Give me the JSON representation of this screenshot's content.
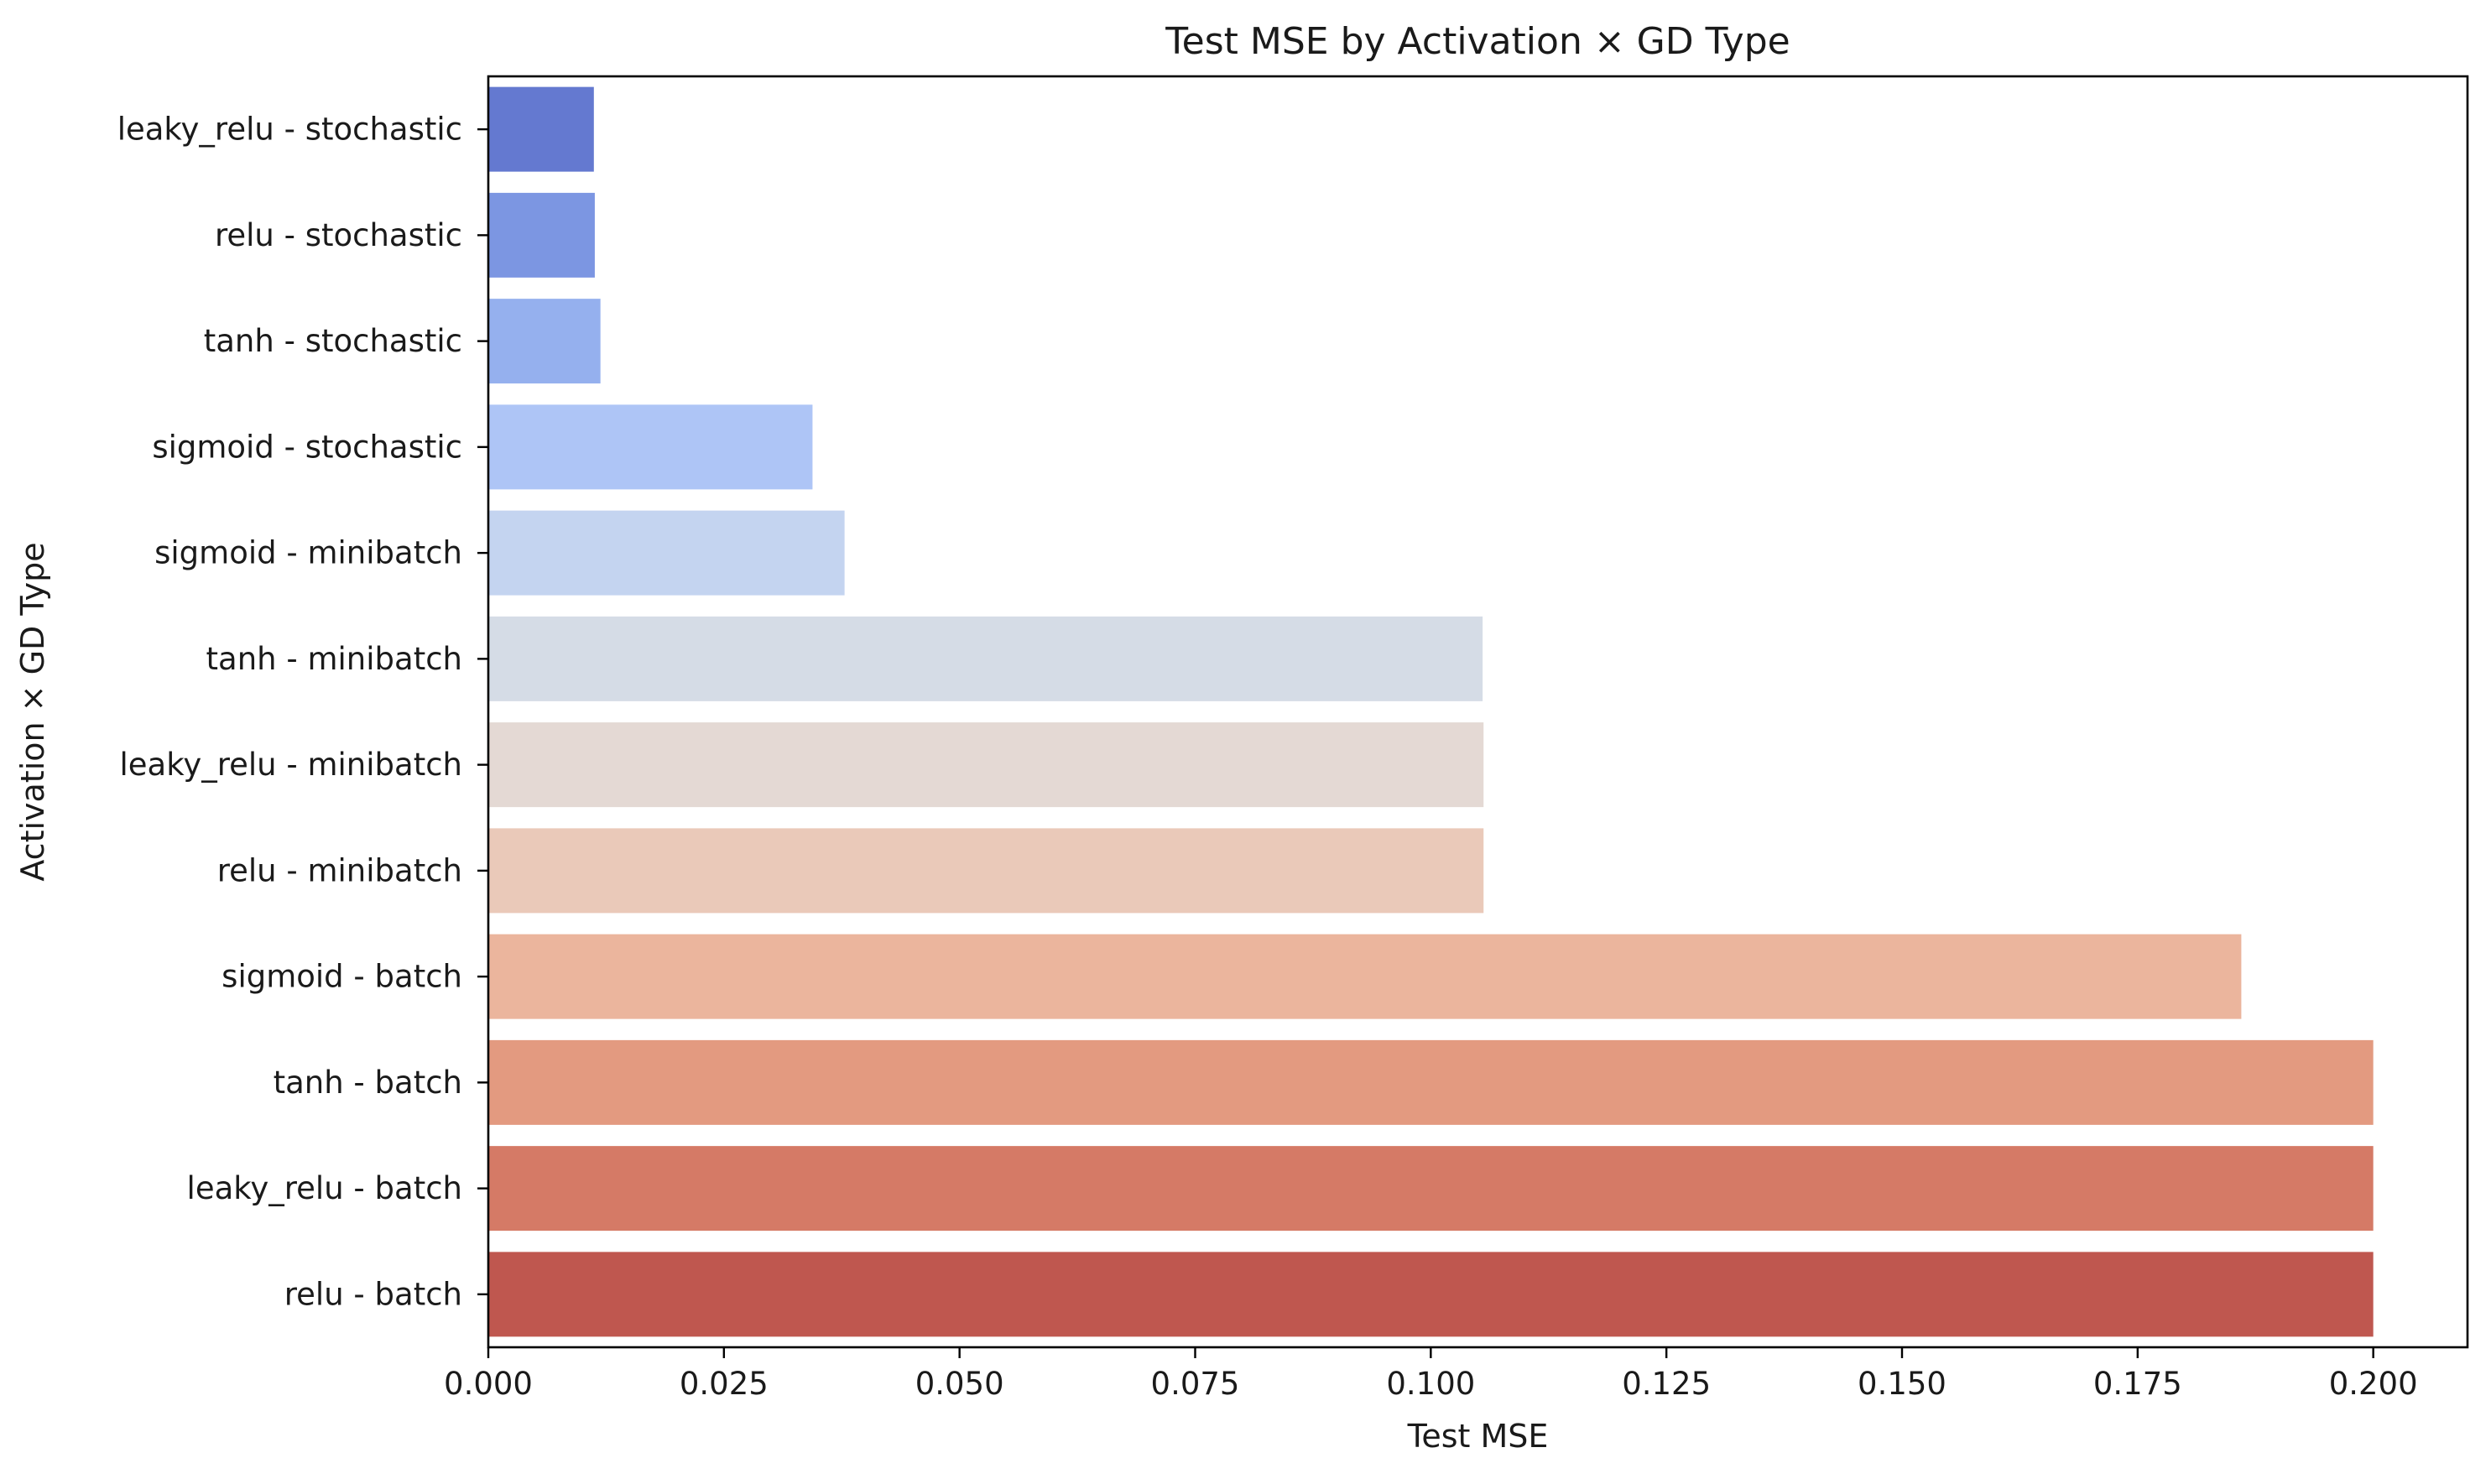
{
  "chart_data": {
    "type": "bar",
    "orientation": "horizontal",
    "title": "Test MSE by Activation × GD Type",
    "xlabel": "Test MSE",
    "ylabel": "Activation × GD Type",
    "xlim": [
      0,
      0.21
    ],
    "xticks": [
      0,
      0.025,
      0.05,
      0.075,
      0.1,
      0.125,
      0.15,
      0.175,
      0.2
    ],
    "xtick_labels": [
      "0.000",
      "0.025",
      "0.050",
      "0.075",
      "0.100",
      "0.125",
      "0.150",
      "0.175",
      "0.200"
    ],
    "grid": false,
    "legend": "none",
    "categories": [
      "leaky_relu - stochastic",
      "relu - stochastic",
      "tanh - stochastic",
      "sigmoid - stochastic",
      "sigmoid - minibatch",
      "tanh - minibatch",
      "leaky_relu - minibatch",
      "relu - minibatch",
      "sigmoid - batch",
      "tanh - batch",
      "leaky_relu - batch",
      "relu - batch"
    ],
    "values": [
      0.0112,
      0.0113,
      0.0119,
      0.0344,
      0.0378,
      0.1055,
      0.1056,
      0.1056,
      0.186,
      0.2,
      0.2,
      0.2
    ],
    "colors": [
      "#6479d0",
      "#7c96e2",
      "#95b0ee",
      "#aec5f6",
      "#c4d4f0",
      "#d5dce6",
      "#e4d9d4",
      "#eac9b9",
      "#ebb59d",
      "#e39a80",
      "#d57a66",
      "#bf574f"
    ]
  }
}
